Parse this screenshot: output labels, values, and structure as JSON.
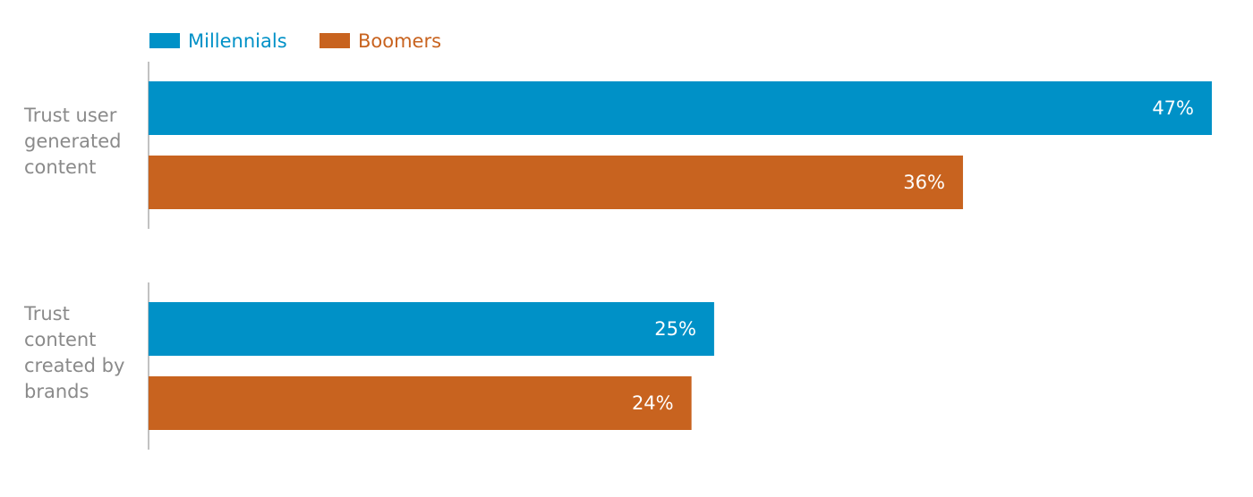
{
  "chart_data": {
    "type": "bar",
    "orientation": "horizontal",
    "categories": [
      [
        "Trust user",
        "generated",
        "content"
      ],
      [
        "Trust",
        "content",
        "created by",
        "brands"
      ]
    ],
    "series": [
      {
        "name": "Millennials",
        "values": [
          47,
          25
        ],
        "labels": [
          "47%",
          "25%"
        ],
        "color": "#0091C7"
      },
      {
        "name": "Boomers",
        "values": [
          36,
          24
        ],
        "labels": [
          "36%",
          "24%"
        ],
        "color": "#C8631F"
      }
    ],
    "xlim": [
      0,
      47
    ],
    "legend": "top-left",
    "grid": false
  }
}
